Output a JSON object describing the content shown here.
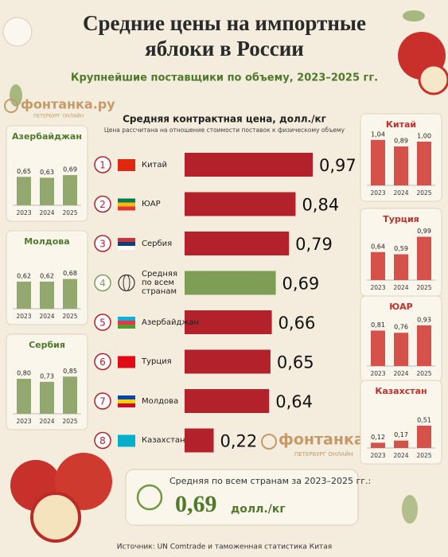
{
  "header": {
    "title_line1": "Средние цены на импортные",
    "title_line2": "яблоки в России",
    "subtitle": "Крупнейшие поставщики по объему, 2023–2025 гг."
  },
  "logo": {
    "name": "фонтанка.ру",
    "tagline": "ПЕТЕРБУРГ ОНЛАЙН"
  },
  "chart_data": [
    {
      "type": "hbar",
      "title": "Средняя контрактная цена, долл./кг",
      "subtitle": "Цена рассчитана на отношение стоимости поставок к физическому объему",
      "ranks": [
        "1",
        "2",
        "3",
        "4",
        "5",
        "6",
        "7",
        "8"
      ],
      "categories": [
        "Китай",
        "ЮАР",
        "Сербия",
        "Средняя по всем странам",
        "Азербайджан",
        "Турция",
        "Молдова",
        "Казахстан"
      ],
      "values": [
        0.97,
        0.84,
        0.79,
        0.69,
        0.66,
        0.65,
        0.64,
        0.22
      ],
      "value_labels": [
        "0,97",
        "0,84",
        "0,79",
        "0,69",
        "0,66",
        "0,65",
        "0,64",
        "0,22"
      ],
      "colors": [
        "#b3212b",
        "#b3212b",
        "#b3212b",
        "#7f9e55",
        "#b3212b",
        "#b3212b",
        "#b3212b",
        "#b3212b"
      ]
    },
    {
      "type": "column",
      "title": "Азербайджан",
      "color": "#93a86f",
      "categories": [
        "2023",
        "2024",
        "2025"
      ],
      "values": [
        0.65,
        0.63,
        0.69
      ],
      "value_labels": [
        "0,65",
        "0,63",
        "0,69"
      ]
    },
    {
      "type": "column",
      "title": "Молдова",
      "color": "#93a86f",
      "categories": [
        "2023",
        "2024",
        "2025"
      ],
      "values": [
        0.62,
        0.62,
        0.68
      ],
      "value_labels": [
        "0,62",
        "0,62",
        "0,68"
      ]
    },
    {
      "type": "column",
      "title": "Сербия",
      "color": "#93a86f",
      "categories": [
        "2023",
        "2024",
        "2025"
      ],
      "values": [
        0.8,
        0.73,
        0.85
      ],
      "value_labels": [
        "0,80",
        "0,73",
        "0,85"
      ]
    },
    {
      "type": "column",
      "title": "Китай",
      "color": "#d4524a",
      "categories": [
        "2023",
        "2024",
        "2025"
      ],
      "values": [
        1.04,
        0.89,
        1.0
      ],
      "value_labels": [
        "1,04",
        "0,89",
        "1,00"
      ]
    },
    {
      "type": "column",
      "title": "Турция",
      "color": "#d4524a",
      "categories": [
        "2023",
        "2024",
        "2025"
      ],
      "values": [
        0.64,
        0.59,
        0.99
      ],
      "value_labels": [
        "0,64",
        "0,59",
        "0,99"
      ]
    },
    {
      "type": "column",
      "title": "ЮАР",
      "color": "#d4524a",
      "categories": [
        "2023",
        "2024",
        "2025"
      ],
      "values": [
        0.81,
        0.76,
        0.93
      ],
      "value_labels": [
        "0,81",
        "0,76",
        "0,93"
      ]
    },
    {
      "type": "column",
      "title": "Казахстан",
      "color": "#d4524a",
      "categories": [
        "2023",
        "2024",
        "2025"
      ],
      "values": [
        0.12,
        0.17,
        0.51
      ],
      "value_labels": [
        "0,12",
        "0,17",
        "0,51"
      ]
    }
  ],
  "summary": {
    "label": "Средняя по всем странам за 2023–2025 гг.:",
    "value": "0,69",
    "unit": "долл./кг"
  },
  "source": "Источник: UN Comtrade и таможенная статистика Китая"
}
